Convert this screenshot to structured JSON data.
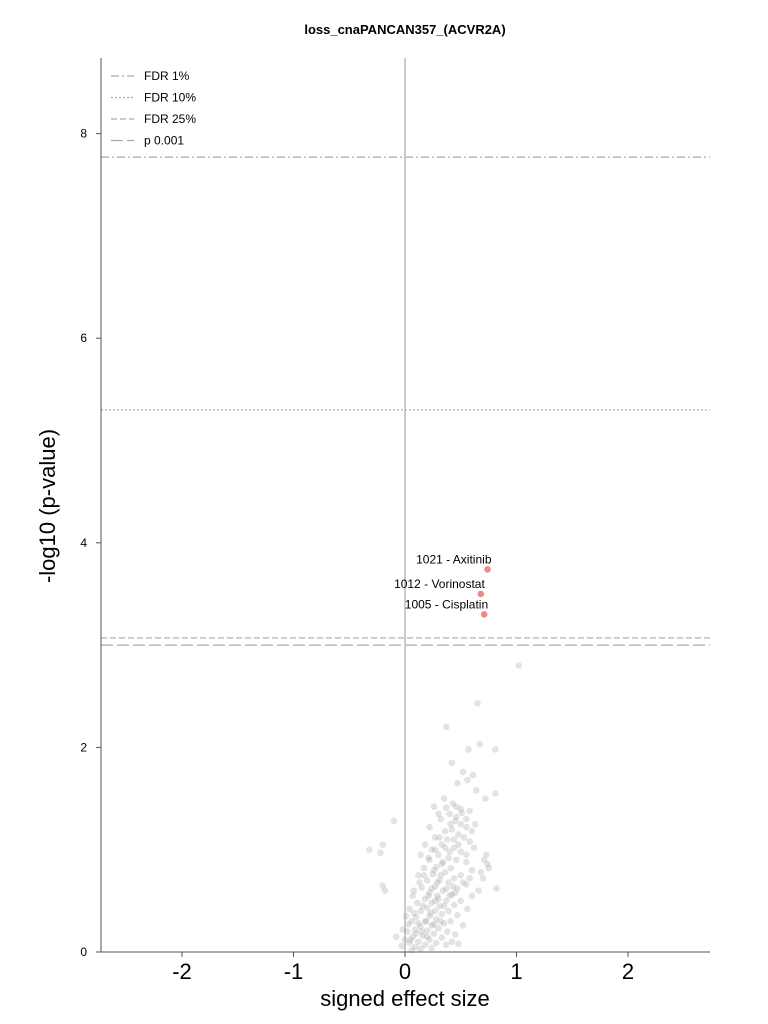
{
  "chart_data": {
    "type": "scatter",
    "title": "loss_cnaPANCAN357_(ACVR2A)",
    "xlabel": "signed effect size",
    "ylabel": "-log10 (p-value)",
    "xlim": [
      -2.2,
      2.7
    ],
    "ylim": [
      0,
      8.7
    ],
    "xticks": [
      "-2",
      "-1",
      "0",
      "1",
      "2"
    ],
    "yticks": [
      "0",
      "2",
      "4",
      "6",
      "8"
    ],
    "legend_position": "top-left",
    "grid": false,
    "colors": {
      "background_points": "#9a9a9a",
      "significant_points": "#f08a8a",
      "axis": "#555555",
      "threshold_lines": "#aaaaaa",
      "zero_line": "#bbbbbb"
    },
    "thresholds": [
      {
        "name": "FDR 1%",
        "y": 7.77,
        "style": "dashdot"
      },
      {
        "name": "FDR 10%",
        "y": 5.3,
        "style": "dotted"
      },
      {
        "name": "FDR 25%",
        "y": 3.07,
        "style": "dashed"
      },
      {
        "name": "p 0.001",
        "y": 3.0,
        "style": "longdash"
      }
    ],
    "highlighted": [
      {
        "label": "1021 - Axitinib",
        "x": 0.74,
        "y": 3.74
      },
      {
        "label": "1012 - Vorinostat",
        "x": 0.68,
        "y": 3.5
      },
      {
        "label": "1005 - Cisplatin",
        "x": 0.71,
        "y": 3.3
      }
    ],
    "points": [
      [
        1.02,
        2.8
      ],
      [
        0.65,
        2.43
      ],
      [
        0.37,
        2.2
      ],
      [
        0.81,
        1.98
      ],
      [
        0.57,
        1.98
      ],
      [
        0.67,
        2.03
      ],
      [
        0.42,
        1.85
      ],
      [
        0.52,
        1.76
      ],
      [
        0.61,
        1.73
      ],
      [
        0.56,
        1.68
      ],
      [
        0.64,
        1.58
      ],
      [
        0.81,
        1.55
      ],
      [
        0.72,
        1.5
      ],
      [
        0.43,
        1.45
      ],
      [
        0.37,
        1.41
      ],
      [
        0.46,
        1.42
      ],
      [
        0.26,
        1.42
      ],
      [
        0.51,
        1.36
      ],
      [
        0.4,
        1.35
      ],
      [
        0.32,
        1.3
      ],
      [
        0.45,
        1.28
      ],
      [
        0.5,
        1.25
      ],
      [
        0.55,
        1.22
      ],
      [
        0.42,
        1.2
      ],
      [
        0.36,
        1.18
      ],
      [
        0.22,
        1.22
      ],
      [
        0.48,
        1.15
      ],
      [
        0.53,
        1.12
      ],
      [
        0.27,
        1.12
      ],
      [
        0.38,
        1.1
      ],
      [
        0.58,
        1.08
      ],
      [
        0.33,
        1.05
      ],
      [
        0.18,
        1.05
      ],
      [
        0.44,
        1.02
      ],
      [
        0.24,
        1.0
      ],
      [
        0.5,
        0.98
      ],
      [
        0.3,
        0.95
      ],
      [
        0.14,
        0.95
      ],
      [
        0.39,
        0.92
      ],
      [
        0.46,
        0.9
      ],
      [
        0.22,
        0.9
      ],
      [
        0.55,
        0.88
      ],
      [
        0.33,
        0.86
      ],
      [
        0.71,
        0.9
      ],
      [
        0.74,
        0.86
      ],
      [
        0.28,
        0.83
      ],
      [
        0.41,
        0.82
      ],
      [
        0.17,
        0.82
      ],
      [
        0.6,
        0.8
      ],
      [
        0.36,
        0.78
      ],
      [
        0.25,
        0.76
      ],
      [
        0.5,
        0.75
      ],
      [
        0.12,
        0.75
      ],
      [
        0.44,
        0.72
      ],
      [
        0.31,
        0.7
      ],
      [
        0.2,
        0.7
      ],
      [
        0.39,
        0.68
      ],
      [
        0.55,
        0.66
      ],
      [
        0.27,
        0.64
      ],
      [
        0.15,
        0.63
      ],
      [
        0.47,
        0.62
      ],
      [
        0.34,
        0.6
      ],
      [
        0.22,
        0.58
      ],
      [
        0.08,
        0.6
      ],
      [
        0.42,
        0.56
      ],
      [
        0.29,
        0.55
      ],
      [
        0.6,
        0.55
      ],
      [
        0.18,
        0.52
      ],
      [
        0.37,
        0.5
      ],
      [
        0.5,
        0.5
      ],
      [
        0.24,
        0.48
      ],
      [
        0.11,
        0.48
      ],
      [
        0.44,
        0.46
      ],
      [
        0.31,
        0.45
      ],
      [
        0.2,
        0.43
      ],
      [
        0.56,
        0.42
      ],
      [
        0.27,
        0.4
      ],
      [
        0.39,
        0.4
      ],
      [
        0.14,
        0.4
      ],
      [
        0.04,
        0.42
      ],
      [
        0.33,
        0.37
      ],
      [
        0.22,
        0.35
      ],
      [
        0.47,
        0.36
      ],
      [
        0.1,
        0.34
      ],
      [
        0.28,
        0.32
      ],
      [
        0.18,
        0.3
      ],
      [
        0.41,
        0.3
      ],
      [
        0.06,
        0.3
      ],
      [
        0.35,
        0.28
      ],
      [
        0.24,
        0.26
      ],
      [
        0.14,
        0.25
      ],
      [
        0.52,
        0.26
      ],
      [
        0.3,
        0.23
      ],
      [
        0.2,
        0.21
      ],
      [
        0.09,
        0.22
      ],
      [
        0.38,
        0.2
      ],
      [
        0.02,
        0.2
      ],
      [
        0.26,
        0.18
      ],
      [
        0.16,
        0.16
      ],
      [
        0.45,
        0.17
      ],
      [
        0.07,
        0.15
      ],
      [
        0.33,
        0.14
      ],
      [
        0.22,
        0.12
      ],
      [
        0.12,
        0.1
      ],
      [
        0.28,
        0.09
      ],
      [
        0.04,
        0.09
      ],
      [
        0.18,
        0.07
      ],
      [
        0.37,
        0.07
      ],
      [
        0.09,
        0.05
      ],
      [
        0.14,
        0.03
      ],
      [
        0.24,
        0.04
      ],
      [
        -0.03,
        0.06
      ],
      [
        0.0,
        0.12
      ],
      [
        0.06,
        0.02
      ],
      [
        0.48,
        0.08
      ],
      [
        0.42,
        0.1
      ],
      [
        -0.02,
        0.22
      ],
      [
        0.01,
        0.35
      ],
      [
        -0.08,
        0.15
      ],
      [
        0.7,
        0.72
      ],
      [
        0.66,
        0.6
      ],
      [
        0.82,
        0.62
      ],
      [
        0.73,
        0.95
      ],
      [
        0.62,
        1.02
      ],
      [
        0.55,
        1.3
      ],
      [
        0.58,
        1.38
      ],
      [
        0.3,
        1.35
      ],
      [
        0.35,
        1.5
      ],
      [
        0.47,
        1.65
      ],
      [
        -0.1,
        1.28
      ],
      [
        -0.2,
        1.05
      ],
      [
        -0.32,
        1.0
      ],
      [
        -0.22,
        0.97
      ],
      [
        -0.2,
        0.65
      ],
      [
        -0.18,
        0.6
      ],
      [
        0.45,
        0.58
      ],
      [
        0.52,
        0.68
      ],
      [
        0.58,
        0.72
      ],
      [
        0.26,
        0.8
      ],
      [
        0.34,
        0.88
      ],
      [
        0.4,
        0.98
      ],
      [
        0.48,
        1.05
      ],
      [
        0.6,
        1.18
      ],
      [
        0.63,
        1.25
      ],
      [
        0.46,
        1.32
      ],
      [
        0.41,
        1.25
      ],
      [
        0.19,
        0.3
      ],
      [
        0.16,
        0.45
      ],
      [
        0.21,
        0.55
      ],
      [
        0.24,
        0.62
      ],
      [
        0.29,
        0.68
      ],
      [
        0.32,
        0.75
      ],
      [
        0.27,
        0.5
      ],
      [
        0.23,
        0.38
      ],
      [
        0.35,
        0.45
      ],
      [
        0.4,
        0.55
      ],
      [
        0.43,
        0.64
      ],
      [
        0.37,
        0.62
      ],
      [
        0.3,
        0.52
      ],
      [
        0.26,
        0.27
      ],
      [
        0.32,
        0.3
      ],
      [
        0.08,
        0.38
      ],
      [
        0.12,
        0.28
      ],
      [
        0.1,
        0.18
      ],
      [
        0.15,
        0.2
      ],
      [
        0.05,
        0.12
      ],
      [
        0.2,
        0.15
      ],
      [
        0.03,
        0.27
      ],
      [
        0.55,
        0.95
      ],
      [
        0.68,
        0.78
      ],
      [
        0.75,
        0.82
      ],
      [
        0.5,
        1.4
      ],
      [
        0.44,
        1.1
      ],
      [
        0.36,
        1.02
      ],
      [
        0.21,
        0.92
      ],
      [
        0.27,
        1.0
      ],
      [
        0.31,
        1.12
      ],
      [
        0.13,
        0.68
      ],
      [
        0.17,
        0.75
      ],
      [
        0.07,
        0.55
      ]
    ]
  }
}
